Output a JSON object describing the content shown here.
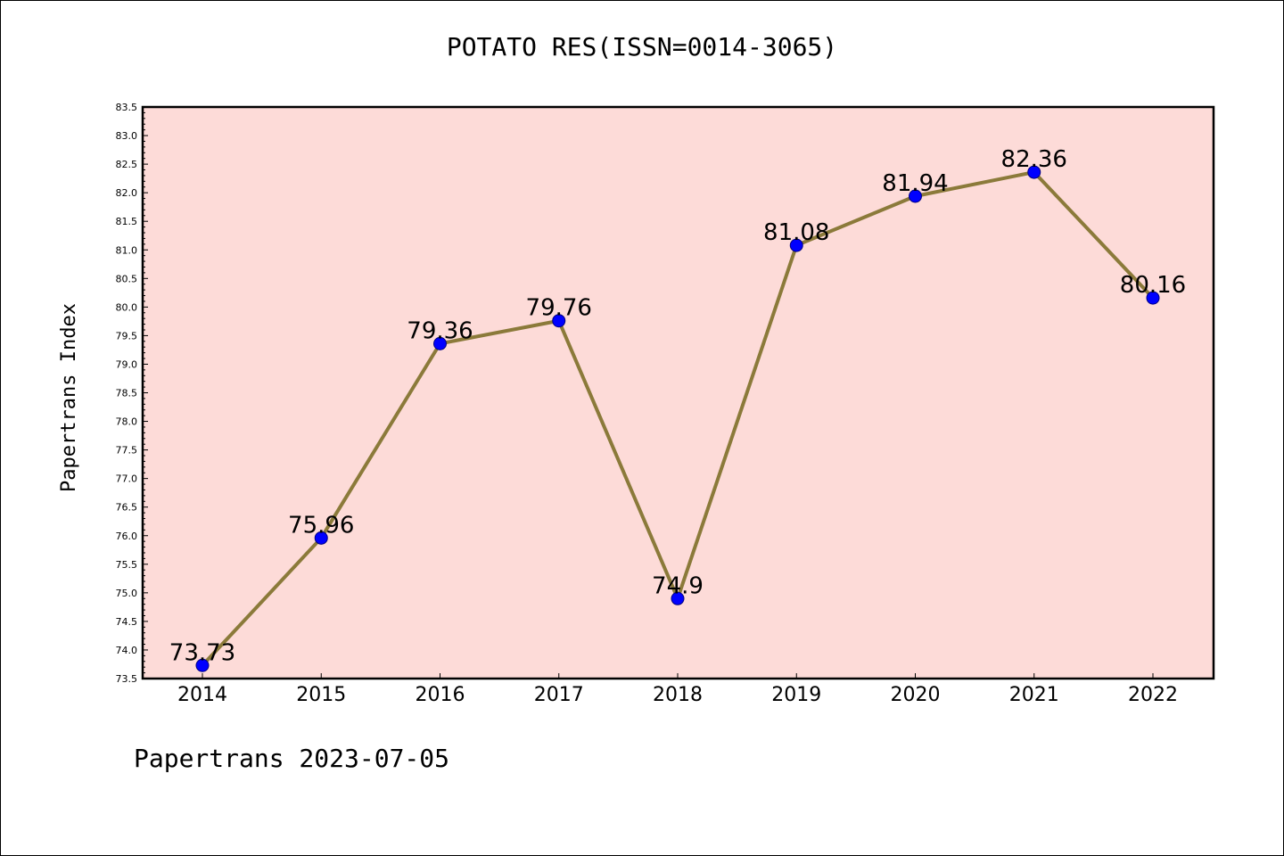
{
  "title": "POTATO RES(ISSN=0014-3065)",
  "footer": "Papertrans 2023-07-05",
  "colors": {
    "plot_bg": "#fddbd8",
    "line": "#8b7a3a",
    "marker": "#0000ff",
    "marker_edge": "#000080"
  },
  "chart_data": {
    "type": "line",
    "title": "POTATO RES(ISSN=0014-3065)",
    "xlabel": "",
    "ylabel": "Papertrans Index",
    "categories": [
      "2014",
      "2015",
      "2016",
      "2017",
      "2018",
      "2019",
      "2020",
      "2021",
      "2022"
    ],
    "series": [
      {
        "values": [
          73.73,
          75.96,
          79.36,
          79.76,
          74.9,
          81.08,
          81.94,
          82.36,
          80.16
        ],
        "labels": [
          "73.73",
          "75.96",
          "79.36",
          "79.76",
          "74.9",
          "81.08",
          "81.94",
          "82.36",
          "80.16"
        ]
      }
    ],
    "ylim": [
      73.5,
      83.5
    ],
    "ytick_step": 0.5,
    "grid": false,
    "legend": "none"
  }
}
